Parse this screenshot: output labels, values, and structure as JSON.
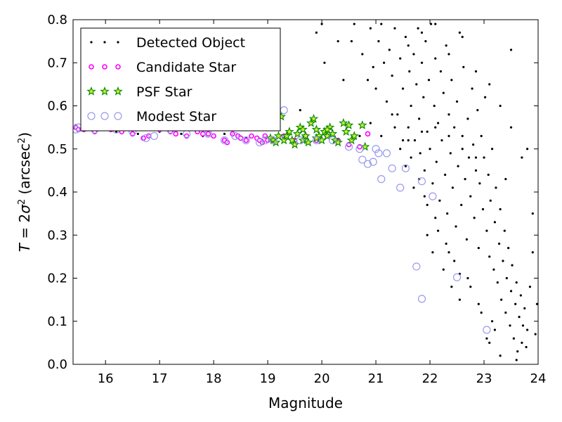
{
  "chart_data": {
    "type": "scatter",
    "xlabel": "Magnitude",
    "ylabel": "T = 2σ² (arcsec²)",
    "xlim": [
      15.4,
      24
    ],
    "ylim": [
      0.0,
      0.8
    ],
    "x_ticks": [
      16,
      17,
      18,
      19,
      20,
      21,
      22,
      23,
      24
    ],
    "y_ticks": [
      0.0,
      0.1,
      0.2,
      0.3,
      0.4,
      0.5,
      0.6,
      0.7,
      0.8
    ],
    "grid": false,
    "legend_position": "top-left",
    "series": [
      {
        "name": "Detected Object",
        "marker": "dot",
        "color": "#000000",
        "points": [
          [
            15.45,
            0.555
          ],
          [
            15.8,
            0.545
          ],
          [
            16.2,
            0.54
          ],
          [
            16.6,
            0.535
          ],
          [
            17.0,
            0.54
          ],
          [
            17.4,
            0.535
          ],
          [
            17.8,
            0.53
          ],
          [
            18.2,
            0.535
          ],
          [
            18.6,
            0.525
          ],
          [
            18.9,
            0.52
          ],
          [
            19.6,
            0.59
          ],
          [
            19.9,
            0.77
          ],
          [
            20.0,
            0.79
          ],
          [
            20.05,
            0.7
          ],
          [
            20.3,
            0.75
          ],
          [
            20.4,
            0.66
          ],
          [
            20.55,
            0.75
          ],
          [
            20.6,
            0.79
          ],
          [
            20.75,
            0.72
          ],
          [
            20.85,
            0.66
          ],
          [
            20.9,
            0.78
          ],
          [
            20.95,
            0.69
          ],
          [
            21.0,
            0.64
          ],
          [
            21.05,
            0.75
          ],
          [
            21.1,
            0.79
          ],
          [
            21.15,
            0.7
          ],
          [
            21.2,
            0.61
          ],
          [
            21.25,
            0.73
          ],
          [
            21.3,
            0.67
          ],
          [
            21.35,
            0.78
          ],
          [
            21.4,
            0.58
          ],
          [
            21.45,
            0.71
          ],
          [
            21.5,
            0.64
          ],
          [
            21.55,
            0.76
          ],
          [
            21.6,
            0.55
          ],
          [
            21.62,
            0.68
          ],
          [
            21.65,
            0.6
          ],
          [
            21.7,
            0.72
          ],
          [
            21.72,
            0.52
          ],
          [
            21.75,
            0.65
          ],
          [
            21.78,
            0.78
          ],
          [
            21.8,
            0.57
          ],
          [
            21.82,
            0.49
          ],
          [
            21.85,
            0.7
          ],
          [
            21.88,
            0.62
          ],
          [
            21.9,
            0.45
          ],
          [
            21.92,
            0.75
          ],
          [
            21.95,
            0.54
          ],
          [
            21.98,
            0.66
          ],
          [
            22.0,
            0.5
          ],
          [
            22.02,
            0.79
          ],
          [
            22.05,
            0.42
          ],
          [
            22.08,
            0.6
          ],
          [
            22.1,
            0.71
          ],
          [
            22.12,
            0.47
          ],
          [
            22.15,
            0.56
          ],
          [
            22.18,
            0.38
          ],
          [
            22.2,
            0.68
          ],
          [
            22.22,
            0.52
          ],
          [
            22.25,
            0.63
          ],
          [
            22.28,
            0.44
          ],
          [
            22.3,
            0.74
          ],
          [
            22.32,
            0.35
          ],
          [
            22.35,
            0.58
          ],
          [
            22.38,
            0.49
          ],
          [
            22.4,
            0.66
          ],
          [
            22.42,
            0.41
          ],
          [
            22.45,
            0.55
          ],
          [
            22.48,
            0.32
          ],
          [
            22.5,
            0.61
          ],
          [
            22.52,
            0.46
          ],
          [
            22.55,
            0.77
          ],
          [
            22.58,
            0.37
          ],
          [
            22.6,
            0.53
          ],
          [
            22.62,
            0.69
          ],
          [
            22.65,
            0.43
          ],
          [
            22.68,
            0.29
          ],
          [
            22.7,
            0.57
          ],
          [
            22.72,
            0.48
          ],
          [
            22.75,
            0.39
          ],
          [
            22.78,
            0.64
          ],
          [
            22.8,
            0.51
          ],
          [
            22.82,
            0.34
          ],
          [
            22.85,
            0.45
          ],
          [
            22.88,
            0.59
          ],
          [
            22.9,
            0.27
          ],
          [
            22.92,
            0.42
          ],
          [
            22.95,
            0.53
          ],
          [
            22.98,
            0.36
          ],
          [
            23.0,
            0.48
          ],
          [
            23.02,
            0.62
          ],
          [
            23.05,
            0.31
          ],
          [
            23.08,
            0.44
          ],
          [
            23.1,
            0.25
          ],
          [
            23.12,
            0.38
          ],
          [
            23.15,
            0.5
          ],
          [
            23.18,
            0.22
          ],
          [
            23.2,
            0.33
          ],
          [
            23.22,
            0.41
          ],
          [
            23.25,
            0.19
          ],
          [
            23.28,
            0.28
          ],
          [
            23.3,
            0.36
          ],
          [
            23.32,
            0.15
          ],
          [
            23.35,
            0.24
          ],
          [
            23.38,
            0.31
          ],
          [
            23.4,
            0.12
          ],
          [
            23.42,
            0.2
          ],
          [
            23.45,
            0.27
          ],
          [
            23.48,
            0.09
          ],
          [
            23.5,
            0.17
          ],
          [
            23.52,
            0.23
          ],
          [
            23.55,
            0.06
          ],
          [
            23.58,
            0.14
          ],
          [
            23.6,
            0.19
          ],
          [
            23.62,
            0.03
          ],
          [
            23.65,
            0.11
          ],
          [
            23.68,
            0.16
          ],
          [
            23.7,
            0.05
          ],
          [
            23.72,
            0.09
          ],
          [
            23.75,
            0.13
          ],
          [
            23.78,
            0.04
          ],
          [
            23.8,
            0.08
          ],
          [
            23.85,
            0.18
          ],
          [
            23.9,
            0.26
          ],
          [
            23.95,
            0.07
          ],
          [
            23.98,
            0.14
          ],
          [
            23.4,
            0.43
          ],
          [
            23.5,
            0.73
          ],
          [
            23.7,
            0.48
          ],
          [
            23.9,
            0.35
          ],
          [
            22.55,
            0.15
          ],
          [
            22.7,
            0.2
          ],
          [
            23.05,
            0.06
          ],
          [
            23.1,
            0.05
          ],
          [
            22.9,
            0.14
          ],
          [
            23.3,
            0.02
          ],
          [
            23.6,
            0.01
          ],
          [
            23.2,
            0.08
          ],
          [
            21.3,
            0.58
          ],
          [
            21.5,
            0.52
          ],
          [
            21.65,
            0.48
          ],
          [
            21.8,
            0.43
          ],
          [
            21.9,
            0.39
          ],
          [
            21.95,
            0.3
          ],
          [
            22.05,
            0.26
          ],
          [
            22.1,
            0.34
          ],
          [
            22.25,
            0.22
          ],
          [
            22.3,
            0.28
          ],
          [
            22.4,
            0.18
          ],
          [
            22.45,
            0.24
          ],
          [
            21.6,
            0.74
          ],
          [
            21.85,
            0.77
          ],
          [
            22.1,
            0.79
          ],
          [
            22.35,
            0.72
          ],
          [
            22.6,
            0.76
          ],
          [
            22.85,
            0.68
          ],
          [
            23.1,
            0.65
          ],
          [
            23.3,
            0.6
          ],
          [
            23.5,
            0.55
          ],
          [
            23.8,
            0.5
          ],
          [
            21.45,
            0.5
          ],
          [
            21.55,
            0.46
          ],
          [
            21.7,
            0.41
          ],
          [
            21.95,
            0.37
          ],
          [
            22.15,
            0.31
          ],
          [
            22.35,
            0.26
          ],
          [
            22.55,
            0.21
          ],
          [
            22.75,
            0.18
          ],
          [
            22.95,
            0.12
          ],
          [
            23.15,
            0.1
          ],
          [
            20.7,
            0.53
          ],
          [
            20.9,
            0.56
          ],
          [
            21.1,
            0.53
          ],
          [
            21.35,
            0.55
          ],
          [
            21.6,
            0.52
          ],
          [
            21.85,
            0.54
          ],
          [
            22.1,
            0.55
          ],
          [
            22.35,
            0.53
          ],
          [
            22.6,
            0.5
          ],
          [
            22.85,
            0.48
          ]
        ]
      },
      {
        "name": "Candidate Star",
        "marker": "circle",
        "color": "#ff00ff",
        "points": [
          [
            15.45,
            0.55
          ],
          [
            15.5,
            0.545
          ],
          [
            15.8,
            0.54
          ],
          [
            16.1,
            0.545
          ],
          [
            16.3,
            0.54
          ],
          [
            16.5,
            0.535
          ],
          [
            16.7,
            0.525
          ],
          [
            16.8,
            0.53
          ],
          [
            17.0,
            0.545
          ],
          [
            17.2,
            0.54
          ],
          [
            17.3,
            0.535
          ],
          [
            17.5,
            0.53
          ],
          [
            17.7,
            0.54
          ],
          [
            17.9,
            0.535
          ],
          [
            18.0,
            0.53
          ],
          [
            18.2,
            0.52
          ],
          [
            18.25,
            0.515
          ],
          [
            18.35,
            0.535
          ],
          [
            18.45,
            0.53
          ],
          [
            18.6,
            0.52
          ],
          [
            18.7,
            0.53
          ],
          [
            18.8,
            0.525
          ],
          [
            18.85,
            0.52
          ],
          [
            18.9,
            0.515
          ],
          [
            18.95,
            0.53
          ],
          [
            19.0,
            0.52
          ],
          [
            19.1,
            0.52
          ],
          [
            19.3,
            0.53
          ],
          [
            19.5,
            0.52
          ],
          [
            19.7,
            0.53
          ],
          [
            19.9,
            0.52
          ],
          [
            20.1,
            0.53
          ],
          [
            20.3,
            0.52
          ],
          [
            20.5,
            0.51
          ],
          [
            20.7,
            0.505
          ],
          [
            20.85,
            0.535
          ],
          [
            16.0,
            0.55
          ],
          [
            15.6,
            0.545
          ],
          [
            17.8,
            0.535
          ],
          [
            18.5,
            0.525
          ]
        ]
      },
      {
        "name": "PSF Star",
        "marker": "star",
        "color": "#00cc00",
        "points": [
          [
            19.05,
            0.525
          ],
          [
            19.1,
            0.52
          ],
          [
            19.15,
            0.515
          ],
          [
            19.2,
            0.53
          ],
          [
            19.25,
            0.575
          ],
          [
            19.3,
            0.52
          ],
          [
            19.35,
            0.53
          ],
          [
            19.4,
            0.54
          ],
          [
            19.45,
            0.52
          ],
          [
            19.5,
            0.51
          ],
          [
            19.55,
            0.535
          ],
          [
            19.6,
            0.55
          ],
          [
            19.65,
            0.52
          ],
          [
            19.7,
            0.53
          ],
          [
            19.75,
            0.515
          ],
          [
            19.8,
            0.56
          ],
          [
            19.85,
            0.57
          ],
          [
            19.9,
            0.545
          ],
          [
            19.95,
            0.53
          ],
          [
            20.0,
            0.52
          ],
          [
            20.05,
            0.54
          ],
          [
            20.1,
            0.53
          ],
          [
            20.15,
            0.55
          ],
          [
            20.2,
            0.535
          ],
          [
            20.25,
            0.52
          ],
          [
            20.3,
            0.515
          ],
          [
            20.4,
            0.56
          ],
          [
            20.45,
            0.54
          ],
          [
            20.5,
            0.555
          ],
          [
            20.55,
            0.52
          ],
          [
            20.6,
            0.53
          ],
          [
            20.75,
            0.555
          ],
          [
            20.8,
            0.505
          ],
          [
            19.65,
            0.545
          ],
          [
            19.9,
            0.525
          ],
          [
            20.1,
            0.545
          ]
        ]
      },
      {
        "name": "Modest Star",
        "marker": "open-circle",
        "color": "#9999ee",
        "points": [
          [
            15.45,
            0.545
          ],
          [
            15.5,
            0.55
          ],
          [
            15.8,
            0.545
          ],
          [
            15.95,
            0.575
          ],
          [
            16.2,
            0.545
          ],
          [
            16.5,
            0.54
          ],
          [
            16.75,
            0.525
          ],
          [
            16.9,
            0.53
          ],
          [
            17.2,
            0.545
          ],
          [
            17.5,
            0.535
          ],
          [
            17.9,
            0.535
          ],
          [
            18.2,
            0.52
          ],
          [
            18.4,
            0.53
          ],
          [
            18.6,
            0.52
          ],
          [
            18.85,
            0.515
          ],
          [
            18.95,
            0.52
          ],
          [
            19.1,
            0.52
          ],
          [
            19.3,
            0.59
          ],
          [
            19.6,
            0.52
          ],
          [
            19.9,
            0.52
          ],
          [
            20.2,
            0.52
          ],
          [
            20.5,
            0.505
          ],
          [
            20.7,
            0.5
          ],
          [
            20.75,
            0.475
          ],
          [
            20.85,
            0.465
          ],
          [
            21.05,
            0.49
          ],
          [
            21.1,
            0.43
          ],
          [
            21.2,
            0.49
          ],
          [
            21.3,
            0.455
          ],
          [
            21.45,
            0.41
          ],
          [
            21.55,
            0.455
          ],
          [
            21.75,
            0.227
          ],
          [
            21.85,
            0.425
          ],
          [
            21.85,
            0.152
          ],
          [
            22.05,
            0.39
          ],
          [
            22.5,
            0.202
          ],
          [
            23.05,
            0.08
          ],
          [
            20.95,
            0.47
          ],
          [
            21.0,
            0.5
          ]
        ]
      }
    ]
  }
}
